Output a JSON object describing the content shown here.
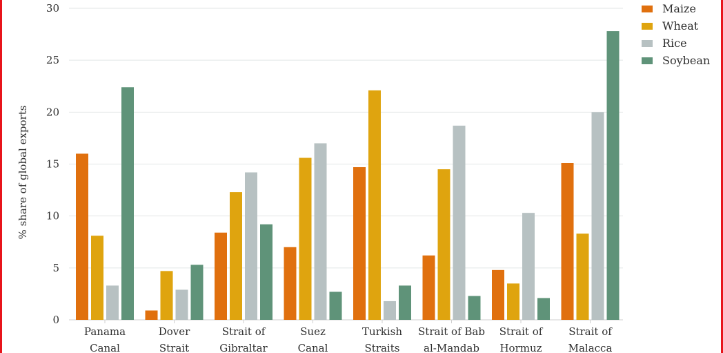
{
  "chart_data": {
    "type": "bar",
    "title": "",
    "xlabel": "",
    "ylabel": "% share of global exports",
    "ylim": [
      0,
      30
    ],
    "yticks": [
      0,
      5,
      10,
      15,
      20,
      25,
      30
    ],
    "grid": "horizontal",
    "legend_position": "top-right",
    "categories": [
      [
        "Panama",
        "Canal"
      ],
      [
        "Dover",
        "Strait"
      ],
      [
        "Strait of",
        "Gibraltar"
      ],
      [
        "Suez",
        "Canal"
      ],
      [
        "Turkish",
        "Straits"
      ],
      [
        "Strait of Bab",
        "al-Mandab"
      ],
      [
        "Strait of",
        "Hormuz"
      ],
      [
        "Strait of",
        "Malacca"
      ]
    ],
    "series": [
      {
        "name": "Maize",
        "color": "#e0700e",
        "values": [
          16.0,
          0.9,
          8.4,
          7.0,
          14.7,
          6.2,
          4.8,
          15.1
        ]
      },
      {
        "name": "Wheat",
        "color": "#dfa40f",
        "values": [
          8.1,
          4.7,
          12.3,
          15.6,
          22.1,
          14.5,
          3.5,
          8.3
        ]
      },
      {
        "name": "Rice",
        "color": "#b7c1c2",
        "values": [
          3.3,
          2.9,
          14.2,
          17.0,
          1.8,
          18.7,
          10.3,
          20.0
        ]
      },
      {
        "name": "Soybean",
        "color": "#5f9379",
        "values": [
          22.4,
          5.3,
          9.2,
          2.7,
          3.3,
          2.3,
          2.1,
          27.8
        ]
      }
    ]
  }
}
